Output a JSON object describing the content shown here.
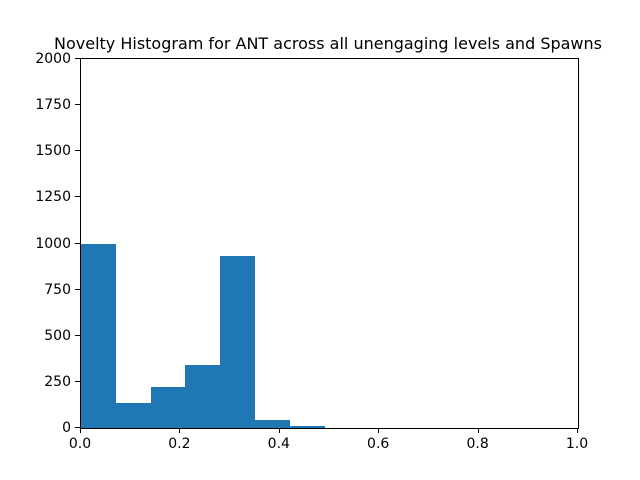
{
  "chart_data": {
    "type": "bar",
    "subtype": "histogram",
    "title": "Novelty Histogram for ANT across all unengaging levels and Spawns",
    "xlabel": "",
    "ylabel": "",
    "bin_edges": [
      0.0,
      0.07,
      0.14,
      0.21,
      0.28,
      0.35,
      0.42,
      0.49
    ],
    "values": [
      995,
      135,
      220,
      340,
      930,
      45,
      12
    ],
    "xlim": [
      0.0,
      1.0
    ],
    "ylim": [
      0,
      2000
    ],
    "x_ticks": [
      0.0,
      0.2,
      0.4,
      0.6,
      0.8,
      1.0
    ],
    "x_tick_labels": [
      "0.0",
      "0.2",
      "0.4",
      "0.6",
      "0.8",
      "1.0"
    ],
    "y_ticks": [
      0,
      250,
      500,
      750,
      1000,
      1250,
      1500,
      1750,
      2000
    ],
    "y_tick_labels": [
      "0",
      "250",
      "500",
      "750",
      "1000",
      "1250",
      "1500",
      "1750",
      "2000"
    ],
    "bar_color": "#1f77b4",
    "background_color": "#ffffff",
    "spine_color": "#000000",
    "grid": false,
    "legend": null
  }
}
